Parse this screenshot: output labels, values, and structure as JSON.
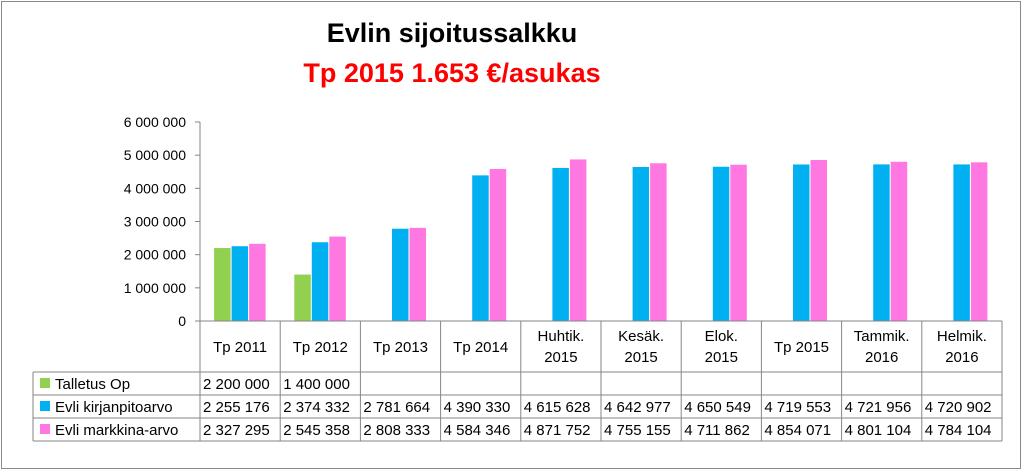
{
  "chart_data": {
    "type": "bar",
    "title": "Evlin sijoitussalkku",
    "subtitle": "Tp 2015 1.653 €/asukas",
    "categories": [
      [
        "Tp 2011"
      ],
      [
        "Tp 2012"
      ],
      [
        "Tp 2013"
      ],
      [
        "Tp 2014"
      ],
      [
        "Huhtik.",
        "2015"
      ],
      [
        "Kesäk.",
        "2015"
      ],
      [
        "Elok.",
        "2015"
      ],
      [
        "Tp 2015"
      ],
      [
        "Tammik.",
        "2016"
      ],
      [
        "Helmik.",
        "2016"
      ]
    ],
    "yticks": [
      "0",
      "1 000 000",
      "2 000 000",
      "3 000 000",
      "4 000 000",
      "5 000 000",
      "6 000 000"
    ],
    "ylim": [
      0,
      6000000
    ],
    "series": [
      {
        "name": "Talletus Op",
        "color": "#92d050",
        "values": [
          2200000,
          1400000,
          null,
          null,
          null,
          null,
          null,
          null,
          null,
          null
        ],
        "labels": [
          "2 200 000",
          "1 400 000",
          "",
          "",
          "",
          "",
          "",
          "",
          "",
          ""
        ]
      },
      {
        "name": "Evli kirjanpitoarvo",
        "color": "#00b0f0",
        "values": [
          2255176,
          2374332,
          2781664,
          4390330,
          4615628,
          4642977,
          4650549,
          4719553,
          4721956,
          4720902
        ],
        "labels": [
          "2 255 176",
          "2 374 332",
          "2 781 664",
          "4 390 330",
          "4 615 628",
          "4 642 977",
          "4 650 549",
          "4 719 553",
          "4 721 956",
          "4 720 902"
        ]
      },
      {
        "name": "Evli markkina-arvo",
        "color": "#ff77e0",
        "values": [
          2327295,
          2545358,
          2808333,
          4584346,
          4871752,
          4755155,
          4711862,
          4854071,
          4801104,
          4784104
        ],
        "labels": [
          "2 327 295",
          "2 545 358",
          "2 808 333",
          "4 584 346",
          "4 871 752",
          "4 755 155",
          "4 711 862",
          "4 854 071",
          "4 801 104",
          "4 784 104"
        ]
      }
    ],
    "gridlines": false,
    "legend": "data-table"
  }
}
